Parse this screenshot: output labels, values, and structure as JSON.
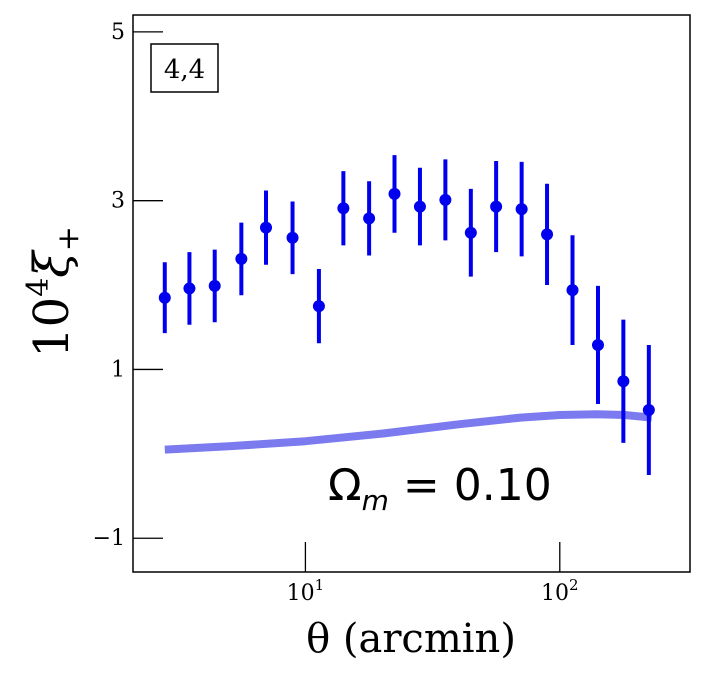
{
  "chart_data": {
    "type": "scatter",
    "panel_label": "4,4",
    "xlabel": "θ (arcmin)",
    "ylabel_prefix": "10",
    "ylabel_exp": "4",
    "ylabel_symbol": "ξ",
    "ylabel_sub": "+",
    "annotation_symbol": "Ω",
    "annotation_sub": "m",
    "annotation_value": " = 0.10",
    "x_scale": "log",
    "xlim": [
      2.1,
      325
    ],
    "ylim": [
      -1.4,
      5.2
    ],
    "yticks": [
      {
        "value": 5,
        "label": "5"
      },
      {
        "value": 3,
        "label": "3"
      },
      {
        "value": 1,
        "label": "1"
      },
      {
        "value": -1,
        "label": "−1"
      }
    ],
    "xticks": [
      {
        "value": 10,
        "base": "10",
        "exp": "1"
      },
      {
        "value": 100,
        "base": "10",
        "exp": "2"
      }
    ],
    "series": [
      {
        "color": "#0000ee",
        "x": [
          2.8,
          3.5,
          4.4,
          5.6,
          7.0,
          8.9,
          11.3,
          14.1,
          17.8,
          22.4,
          28.2,
          35.5,
          44.7,
          56.2,
          70.8,
          89.1,
          112.2,
          141.3,
          177.8,
          223.9
        ],
        "y": [
          1.85,
          1.96,
          1.99,
          2.31,
          2.68,
          2.56,
          1.75,
          2.91,
          2.79,
          3.08,
          2.93,
          3.01,
          2.62,
          2.93,
          2.9,
          2.6,
          1.94,
          1.29,
          0.86,
          0.52
        ],
        "yerr": [
          0.42,
          0.43,
          0.43,
          0.43,
          0.44,
          0.43,
          0.44,
          0.44,
          0.44,
          0.46,
          0.46,
          0.48,
          0.52,
          0.54,
          0.56,
          0.6,
          0.65,
          0.7,
          0.73,
          0.77
        ]
      },
      {
        "type": "line",
        "color": "#7b7bef",
        "x": [
          2.8,
          5,
          10,
          20,
          40,
          70,
          100,
          140,
          180,
          230
        ],
        "y": [
          0.05,
          0.09,
          0.15,
          0.24,
          0.35,
          0.43,
          0.46,
          0.47,
          0.46,
          0.43
        ]
      }
    ]
  }
}
